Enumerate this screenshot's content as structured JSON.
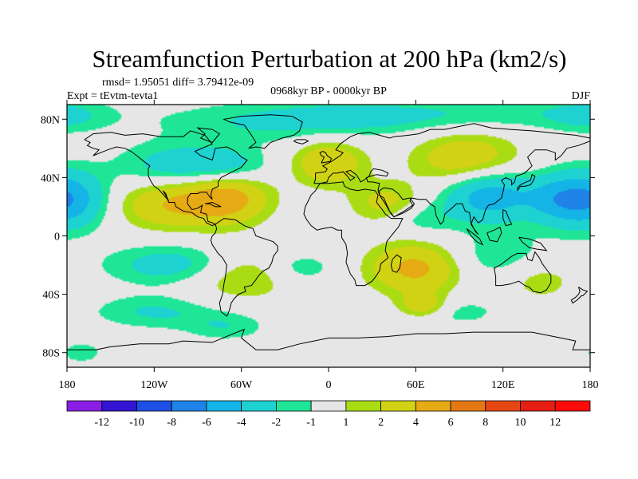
{
  "chart_data": {
    "type": "heatmap",
    "title": "Streamfunction Perturbation at 200 hPa (km2/s)",
    "stats_line": "rmsd= 1.95051 diff= 3.79412e-09",
    "left_label": "Expt = tEvtm-tevta1",
    "center_label": "0968kyr BP - 0000kyr BP",
    "right_label": "DJF",
    "xlim": [
      -180,
      180
    ],
    "ylim": [
      -90,
      90
    ],
    "x_ticks": [
      {
        "value": -180,
        "label": "180"
      },
      {
        "value": -120,
        "label": "120W"
      },
      {
        "value": -60,
        "label": "60W"
      },
      {
        "value": 0,
        "label": "0"
      },
      {
        "value": 60,
        "label": "60E"
      },
      {
        "value": 120,
        "label": "120E"
      },
      {
        "value": 180,
        "label": "180"
      }
    ],
    "y_ticks": [
      {
        "value": 80,
        "label": "80N"
      },
      {
        "value": 40,
        "label": "40N"
      },
      {
        "value": 0,
        "label": "0"
      },
      {
        "value": -40,
        "label": "40S"
      },
      {
        "value": -80,
        "label": "80S"
      }
    ],
    "colorbar": {
      "levels": [
        "-12",
        "-10",
        "-8",
        "-6",
        "-4",
        "-2",
        "-1",
        "1",
        "2",
        "4",
        "6",
        "8",
        "10",
        "12"
      ],
      "colors": [
        "#8a1ee6",
        "#3214d2",
        "#1e50e6",
        "#1e82e6",
        "#14b4e6",
        "#1ed2d2",
        "#1ee696",
        "#e6e6e6",
        "#aadc14",
        "#d2d214",
        "#e6aa14",
        "#e67814",
        "#e64614",
        "#e61e14",
        "#ff0a0a"
      ]
    },
    "features": [
      {
        "lon": -40,
        "lat": 78,
        "value": -2.0,
        "spread_lon": 55,
        "spread_lat": 10
      },
      {
        "lon": 25,
        "lat": 82,
        "value": -1.6,
        "spread_lon": 45,
        "spread_lat": 8
      },
      {
        "lon": 120,
        "lat": 84,
        "value": -1.6,
        "spread_lon": 60,
        "spread_lat": 8
      },
      {
        "lon": 178,
        "lat": 82,
        "value": -1.8,
        "spread_lon": 20,
        "spread_lat": 8
      },
      {
        "lon": -105,
        "lat": 48,
        "value": -3.0,
        "spread_lon": 28,
        "spread_lat": 11
      },
      {
        "lon": -68,
        "lat": 48,
        "value": -2.2,
        "spread_lon": 20,
        "spread_lat": 9
      },
      {
        "lon": -175,
        "lat": 25,
        "value": -3.0,
        "spread_lon": 18,
        "spread_lat": 14
      },
      {
        "lon": 175,
        "lat": 25,
        "value": -3.0,
        "spread_lon": 18,
        "spread_lat": 14
      },
      {
        "lon": 110,
        "lat": 28,
        "value": -5.5,
        "spread_lon": 22,
        "spread_lat": 13
      },
      {
        "lon": 155,
        "lat": 25,
        "value": -3.0,
        "spread_lon": 15,
        "spread_lat": 12
      },
      {
        "lon": 60,
        "lat": 12,
        "value": -1.8,
        "spread_lon": 18,
        "spread_lat": 8
      },
      {
        "lon": 115,
        "lat": -15,
        "value": -1.8,
        "spread_lon": 28,
        "spread_lat": 12
      },
      {
        "lon": -100,
        "lat": -20,
        "value": -3.5,
        "spread_lon": 35,
        "spread_lat": 10
      },
      {
        "lon": -20,
        "lat": -22,
        "value": -2.0,
        "spread_lon": 18,
        "spread_lat": 8
      },
      {
        "lon": -120,
        "lat": -52,
        "value": -2.2,
        "spread_lon": 30,
        "spread_lat": 8
      },
      {
        "lon": -70,
        "lat": -62,
        "value": -1.8,
        "spread_lon": 20,
        "spread_lat": 7
      },
      {
        "lon": 85,
        "lat": -52,
        "value": -1.6,
        "spread_lon": 25,
        "spread_lat": 7
      },
      {
        "lon": -170,
        "lat": -80,
        "value": -1.5,
        "spread_lon": 12,
        "spread_lat": 6
      },
      {
        "lon": -70,
        "lat": 26,
        "value": 5.0,
        "spread_lon": 20,
        "spread_lat": 12
      },
      {
        "lon": -110,
        "lat": 22,
        "value": 3.8,
        "spread_lon": 25,
        "spread_lat": 12
      },
      {
        "lon": 0,
        "lat": 50,
        "value": 3.8,
        "spread_lon": 17,
        "spread_lat": 11
      },
      {
        "lon": 95,
        "lat": 52,
        "value": 3.8,
        "spread_lon": 25,
        "spread_lat": 13
      },
      {
        "lon": 40,
        "lat": 22,
        "value": 2.8,
        "spread_lon": 17,
        "spread_lat": 10
      },
      {
        "lon": 60,
        "lat": -22,
        "value": 4.8,
        "spread_lon": 22,
        "spread_lat": 12
      },
      {
        "lon": 65,
        "lat": -48,
        "value": 3.6,
        "spread_lon": 12,
        "spread_lat": 6
      },
      {
        "lon": -62,
        "lat": -25,
        "value": 3.2,
        "spread_lon": 28,
        "spread_lat": 12
      },
      {
        "lon": 145,
        "lat": -30,
        "value": 1.8,
        "spread_lon": 18,
        "spread_lat": 10
      }
    ],
    "grid": false,
    "coastlines": true
  }
}
